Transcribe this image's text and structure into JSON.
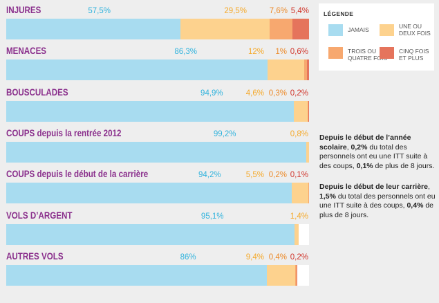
{
  "colors": {
    "jamais": "#a8dcf0",
    "une_ou_deux": "#fdd28e",
    "trois_ou_quatre": "#f7a86f",
    "cinq_et_plus": "#e5745c",
    "title": "#8a2f8c",
    "jamais_text": "#31b3dd",
    "une_ou_deux_text": "#f5a92a",
    "trois_ou_quatre_text": "#ec8a2a",
    "cinq_et_plus_text": "#d0352b"
  },
  "legend": {
    "title": "LÉGENDE",
    "items": [
      {
        "key": "jamais",
        "label": "JAMAIS"
      },
      {
        "key": "une_ou_deux",
        "label": "UNE OU\nDEUX FOIS"
      },
      {
        "key": "trois_ou_quatre",
        "label": "TROIS OU\nQUATRE FOIS"
      },
      {
        "key": "cinq_et_plus",
        "label": "CINQ FOIS\nET PLUS"
      }
    ]
  },
  "notes": [
    {
      "parts": [
        {
          "t": "Depuis le début de l’année scolaire",
          "b": true
        },
        {
          "t": ", ",
          "b": false
        },
        {
          "t": "0,2%",
          "b": true
        },
        {
          "t": " du total des personnels ont eu une ITT suite à des coups, ",
          "b": false
        },
        {
          "t": "0,1%",
          "b": true
        },
        {
          "t": " de plus de 8 jours.",
          "b": false
        }
      ]
    },
    {
      "parts": [
        {
          "t": "Depuis le début de leur carrière",
          "b": true
        },
        {
          "t": ", ",
          "b": false
        },
        {
          "t": "1,5%",
          "b": true
        },
        {
          "t": " du total des personnels ont eu une ITT suite à des coups, ",
          "b": false
        },
        {
          "t": "0,4%",
          "b": true
        },
        {
          "t": " de plus de 8 jours.",
          "b": false
        }
      ]
    }
  ],
  "chart_data": {
    "type": "bar",
    "orientation": "horizontal",
    "stacked": true,
    "normalized": true,
    "title": "",
    "xlabel": "",
    "ylabel": "",
    "categories": [
      "INJURES",
      "MENACES",
      "BOUSCULADES",
      "COUPS depuis la rentrée 2012",
      "COUPS depuis le début de la carrière",
      "VOLS D’ARGENT",
      "AUTRES VOLS"
    ],
    "series": [
      {
        "name": "JAMAIS",
        "values": [
          57.5,
          86.3,
          94.9,
          99.2,
          94.2,
          95.1,
          86
        ],
        "labels": [
          "57,5%",
          "86,3%",
          "94,9%",
          "99,2%",
          "94,2%",
          "95,1%",
          "86%"
        ]
      },
      {
        "name": "UNE OU DEUX FOIS",
        "values": [
          29.5,
          12,
          4.6,
          0.8,
          5.5,
          1.4,
          9.4
        ],
        "labels": [
          "29,5%",
          "12%",
          "4,6%",
          "0,8%",
          "5,5%",
          "1,4%",
          "9,4%"
        ]
      },
      {
        "name": "TROIS OU QUATRE FOIS",
        "values": [
          7.6,
          1,
          0.3,
          0,
          0.2,
          0,
          0.4
        ],
        "labels": [
          "7,6%",
          "1%",
          "0,3%",
          "",
          "0,2%",
          "",
          "0,4%"
        ]
      },
      {
        "name": "CINQ FOIS ET PLUS",
        "values": [
          5.4,
          0.6,
          0.2,
          0,
          0.1,
          0,
          0.2
        ],
        "labels": [
          "5,4%",
          "0,6%",
          "0,2%",
          "",
          "0,1%",
          "",
          "0,2%"
        ]
      }
    ],
    "xlim": [
      0,
      100
    ],
    "grid": false,
    "legend_position": "top-right"
  }
}
